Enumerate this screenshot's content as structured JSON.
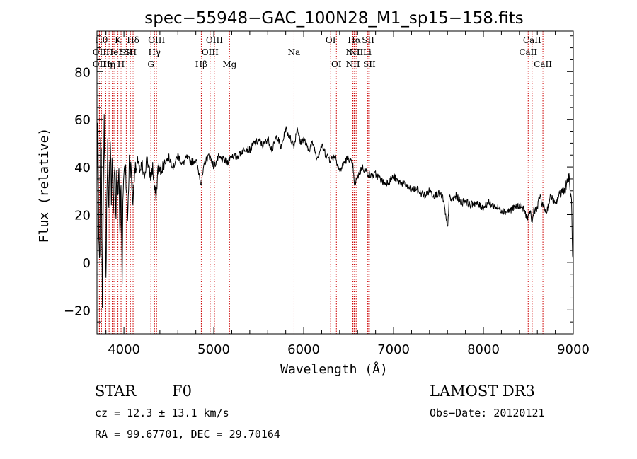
{
  "chart_data": {
    "type": "line",
    "title": "spec−55948−GAC_100N28_M1_sp15−158.fits",
    "xlabel": "Wavelength (Å)",
    "ylabel": "Flux (relative)",
    "xlim": [
      3700,
      9000
    ],
    "ylim": [
      -30,
      97
    ],
    "xticks": [
      4000,
      5000,
      6000,
      7000,
      8000,
      9000
    ],
    "yticks": [
      -20,
      0,
      20,
      40,
      60,
      80
    ],
    "ytick_labels": [
      "−20",
      "0",
      "20",
      "40",
      "60",
      "80"
    ],
    "series": [
      {
        "name": "flux",
        "x": [
          3700,
          3710,
          3720,
          3730,
          3740,
          3750,
          3760,
          3770,
          3780,
          3790,
          3800,
          3810,
          3820,
          3830,
          3840,
          3850,
          3860,
          3870,
          3880,
          3890,
          3900,
          3910,
          3920,
          3933,
          3945,
          3955,
          3968,
          3980,
          3990,
          4000,
          4020,
          4040,
          4060,
          4080,
          4101,
          4120,
          4140,
          4160,
          4180,
          4200,
          4220,
          4240,
          4260,
          4280,
          4300,
          4320,
          4340,
          4360,
          4380,
          4400,
          4450,
          4500,
          4550,
          4600,
          4650,
          4700,
          4750,
          4800,
          4861,
          4900,
          4950,
          5000,
          5050,
          5100,
          5150,
          5200,
          5250,
          5300,
          5350,
          5400,
          5450,
          5500,
          5550,
          5600,
          5650,
          5700,
          5750,
          5800,
          5850,
          5893,
          5930,
          5960,
          6000,
          6050,
          6100,
          6150,
          6200,
          6250,
          6300,
          6350,
          6400,
          6450,
          6500,
          6550,
          6563,
          6600,
          6650,
          6700,
          6750,
          6800,
          6850,
          6900,
          6950,
          7000,
          7050,
          7100,
          7150,
          7200,
          7250,
          7300,
          7350,
          7400,
          7450,
          7500,
          7550,
          7600,
          7620,
          7650,
          7700,
          7750,
          7800,
          7850,
          7900,
          7950,
          8000,
          8050,
          8100,
          8150,
          8200,
          8250,
          8300,
          8350,
          8400,
          8450,
          8498,
          8520,
          8542,
          8560,
          8600,
          8620,
          8662,
          8700,
          8750,
          8800,
          8850,
          8900,
          8950,
          8980,
          8995,
          9000
        ],
        "y": [
          30,
          65,
          10,
          -5,
          55,
          40,
          -15,
          20,
          60,
          35,
          -10,
          30,
          50,
          15,
          40,
          55,
          25,
          45,
          20,
          35,
          42,
          15,
          38,
          30,
          40,
          10,
          35,
          -10,
          30,
          38,
          40,
          18,
          42,
          38,
          25,
          40,
          38,
          44,
          36,
          42,
          35,
          40,
          44,
          38,
          36,
          40,
          30,
          28,
          40,
          38,
          42,
          44,
          40,
          45,
          41,
          44,
          42,
          43,
          33,
          42,
          45,
          40,
          44,
          43,
          42,
          45,
          44,
          46,
          48,
          47,
          50,
          51,
          49,
          52,
          47,
          53,
          48,
          56,
          52,
          49,
          57,
          50,
          52,
          47,
          50,
          44,
          49,
          45,
          43,
          45,
          38,
          42,
          44,
          40,
          32,
          36,
          40,
          38,
          36,
          37,
          35,
          33,
          34,
          36,
          34,
          33,
          32,
          30,
          31,
          29,
          28,
          30,
          28,
          29,
          27,
          14,
          27,
          26,
          28,
          25,
          26,
          24,
          25,
          24,
          23,
          25,
          24,
          23,
          22,
          21,
          22,
          23,
          24,
          22,
          18,
          22,
          16,
          22,
          22,
          28,
          24,
          21,
          28,
          24,
          29,
          31,
          36,
          25,
          0,
          -3
        ]
      }
    ],
    "emission_lines": [
      {
        "wave": 3727,
        "label": "OII",
        "row": 2
      },
      {
        "wave": 3727,
        "label": "OII",
        "row": 3
      },
      {
        "wave": 3750,
        "label": "Hθ",
        "row": 1
      },
      {
        "wave": 3798,
        "label": "Hη",
        "row": 3
      },
      {
        "wave": 3835,
        "label": "Hη",
        "row": 3
      },
      {
        "wave": 3870,
        "label": "He",
        "row": 2
      },
      {
        "wave": 3889,
        "label": "HeI",
        "row": 2
      },
      {
        "wave": 3933,
        "label": "K",
        "row": 1
      },
      {
        "wave": 3968,
        "label": "H",
        "row": 3
      },
      {
        "wave": 4026,
        "label": "SII",
        "row": 2
      },
      {
        "wave": 4072,
        "label": "SII",
        "row": 2
      },
      {
        "wave": 4102,
        "label": "Hδ",
        "row": 1
      },
      {
        "wave": 4300,
        "label": "G",
        "row": 3
      },
      {
        "wave": 4340,
        "label": "Hγ",
        "row": 2
      },
      {
        "wave": 4363,
        "label": "OIII",
        "row": 1
      },
      {
        "wave": 4861,
        "label": "Hβ",
        "row": 3
      },
      {
        "wave": 4959,
        "label": "OIII",
        "row": 2
      },
      {
        "wave": 5007,
        "label": "OIII",
        "row": 1
      },
      {
        "wave": 5175,
        "label": "Mg",
        "row": 3
      },
      {
        "wave": 5893,
        "label": "Na",
        "row": 2
      },
      {
        "wave": 6300,
        "label": "OI",
        "row": 1
      },
      {
        "wave": 6364,
        "label": "OI",
        "row": 3
      },
      {
        "wave": 6548,
        "label": "NII",
        "row": 2
      },
      {
        "wave": 6548,
        "label": "NII",
        "row": 3
      },
      {
        "wave": 6563,
        "label": "Hα",
        "row": 1
      },
      {
        "wave": 6584,
        "label": "NII",
        "row": 2
      },
      {
        "wave": 6708,
        "label": "Li",
        "row": 2
      },
      {
        "wave": 6717,
        "label": "SII",
        "row": 1
      },
      {
        "wave": 6731,
        "label": "SII",
        "row": 3
      },
      {
        "wave": 8498,
        "label": "CaII",
        "row": 2
      },
      {
        "wave": 8542,
        "label": "CaII",
        "row": 1
      },
      {
        "wave": 8662,
        "label": "CaII",
        "row": 3
      }
    ],
    "line_color": "#cc0000",
    "trace_color": "#000000"
  },
  "info": {
    "class": "STAR",
    "subclass": "F0",
    "survey": "LAMOST DR3",
    "cz": "cz = 12.3 ± 13.1 km/s",
    "obs_date": "Obs−Date: 20120121",
    "coords": "RA =  99.67701, DEC =  29.70164"
  }
}
